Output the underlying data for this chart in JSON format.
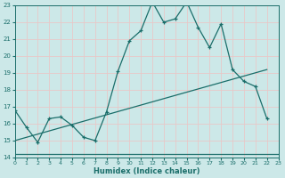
{
  "xlabel": "Humidex (Indice chaleur)",
  "bg_color": "#cce8e8",
  "grid_color": "#b8d8d8",
  "line_color": "#1a6e6a",
  "xmin": 0,
  "xmax": 23,
  "ymin": 14,
  "ymax": 23,
  "line1_x": [
    0,
    1,
    2,
    3,
    4,
    5,
    6,
    7,
    8,
    9,
    10,
    11,
    12,
    13,
    14,
    15,
    16,
    17,
    18,
    19,
    20,
    21,
    22
  ],
  "line1_y": [
    16.8,
    15.8,
    14.9,
    16.3,
    16.4,
    15.9,
    15.2,
    15.0,
    16.7,
    19.1,
    20.9,
    21.5,
    23.2,
    22.0,
    22.2,
    23.2,
    21.7,
    20.5,
    21.9,
    19.2,
    18.5,
    18.2,
    16.3
  ],
  "line2_x": [
    0,
    23
  ],
  "line2_y": [
    14.2,
    14.2
  ],
  "line3_x": [
    0,
    22
  ],
  "line3_y": [
    15.0,
    19.2
  ],
  "xticks": [
    0,
    1,
    2,
    3,
    4,
    5,
    6,
    7,
    8,
    9,
    10,
    11,
    12,
    13,
    14,
    15,
    16,
    17,
    18,
    19,
    20,
    21,
    22,
    23
  ],
  "yticks": [
    14,
    15,
    16,
    17,
    18,
    19,
    20,
    21,
    22,
    23
  ]
}
